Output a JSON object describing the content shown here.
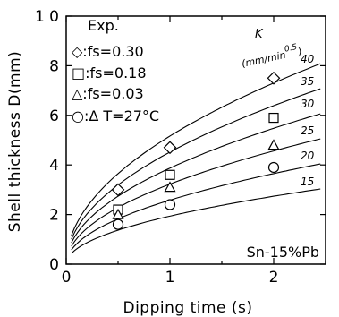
{
  "chart_data": {
    "type": "line",
    "title": "",
    "xlabel": "Dipping time (s)",
    "ylabel": "Shell thickness D(mm)",
    "xlim": [
      0,
      2.5
    ],
    "ylim": [
      0,
      10
    ],
    "x_ticks": [
      "0",
      "1",
      "2"
    ],
    "y_ticks": [
      "0",
      "2",
      "4",
      "6",
      "8",
      "1 0"
    ],
    "grid": false,
    "annotation": "Sn-15%Pb",
    "k_label": "K",
    "k_unit": "(mm/min",
    "k_unit_exponent": "0.5",
    "k_unit_close": ")",
    "model": "D = K · sqrt(t / 60)",
    "curves": [
      {
        "K": 40,
        "label": "40"
      },
      {
        "K": 35,
        "label": "35"
      },
      {
        "K": 30,
        "label": "30"
      },
      {
        "K": 25,
        "label": "25"
      },
      {
        "K": 20,
        "label": "20"
      },
      {
        "K": 15,
        "label": "15"
      }
    ],
    "legend_title": "Exp.",
    "legend_position": "top-left",
    "series": [
      {
        "name": "◇:fs=0.30",
        "marker": "diamond",
        "x": [
          0.5,
          1.0,
          2.0
        ],
        "y": [
          3.0,
          4.7,
          7.5
        ]
      },
      {
        "name": "□:fs=0.18",
        "marker": "square",
        "x": [
          0.5,
          1.0,
          2.0
        ],
        "y": [
          2.2,
          3.6,
          5.9
        ]
      },
      {
        "name": "△:fs=0.03",
        "marker": "triangle",
        "x": [
          0.5,
          1.0,
          2.0
        ],
        "y": [
          2.0,
          3.1,
          4.8
        ]
      },
      {
        "name": "○:Δ T=27°C",
        "marker": "circle",
        "x": [
          0.5,
          1.0,
          2.0
        ],
        "y": [
          1.6,
          2.4,
          3.9
        ]
      }
    ]
  }
}
